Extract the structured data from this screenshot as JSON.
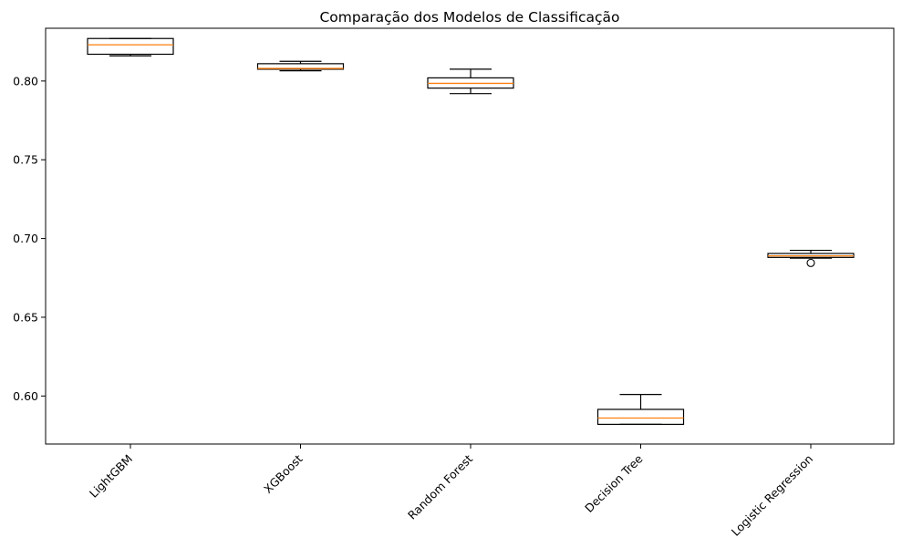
{
  "chart_data": {
    "type": "box",
    "title": "Comparação dos Modelos de Classificação",
    "xlabel": "",
    "ylabel": "",
    "ylim": [
      0.5695,
      0.8335
    ],
    "yticks": [
      "0.60",
      "0.65",
      "0.70",
      "0.75",
      "0.80"
    ],
    "ytick_values": [
      0.6,
      0.65,
      0.7,
      0.75,
      0.8
    ],
    "grid": false,
    "legend": "none",
    "x_tick_rotation_deg": 45,
    "colors": {
      "box": "#000000",
      "median": "#ff7f0e",
      "whisker": "#000000",
      "flier": "#000000"
    },
    "categories": [
      "LightGBM",
      "XGBoost",
      "Random Forest",
      "Decision Tree",
      "Logistic Regression"
    ],
    "boxes": [
      {
        "whislo": 0.816,
        "q1": 0.817,
        "med": 0.823,
        "q3": 0.827,
        "whishi": 0.827,
        "fliers": []
      },
      {
        "whislo": 0.8065,
        "q1": 0.8075,
        "med": 0.808,
        "q3": 0.811,
        "whishi": 0.8125,
        "fliers": []
      },
      {
        "whislo": 0.792,
        "q1": 0.7955,
        "med": 0.7985,
        "q3": 0.802,
        "whishi": 0.8075,
        "fliers": []
      },
      {
        "whislo": 0.582,
        "q1": 0.582,
        "med": 0.586,
        "q3": 0.5915,
        "whishi": 0.601,
        "fliers": []
      },
      {
        "whislo": 0.6875,
        "q1": 0.688,
        "med": 0.689,
        "q3": 0.6905,
        "whishi": 0.6925,
        "fliers": [
          0.6845
        ]
      }
    ]
  }
}
